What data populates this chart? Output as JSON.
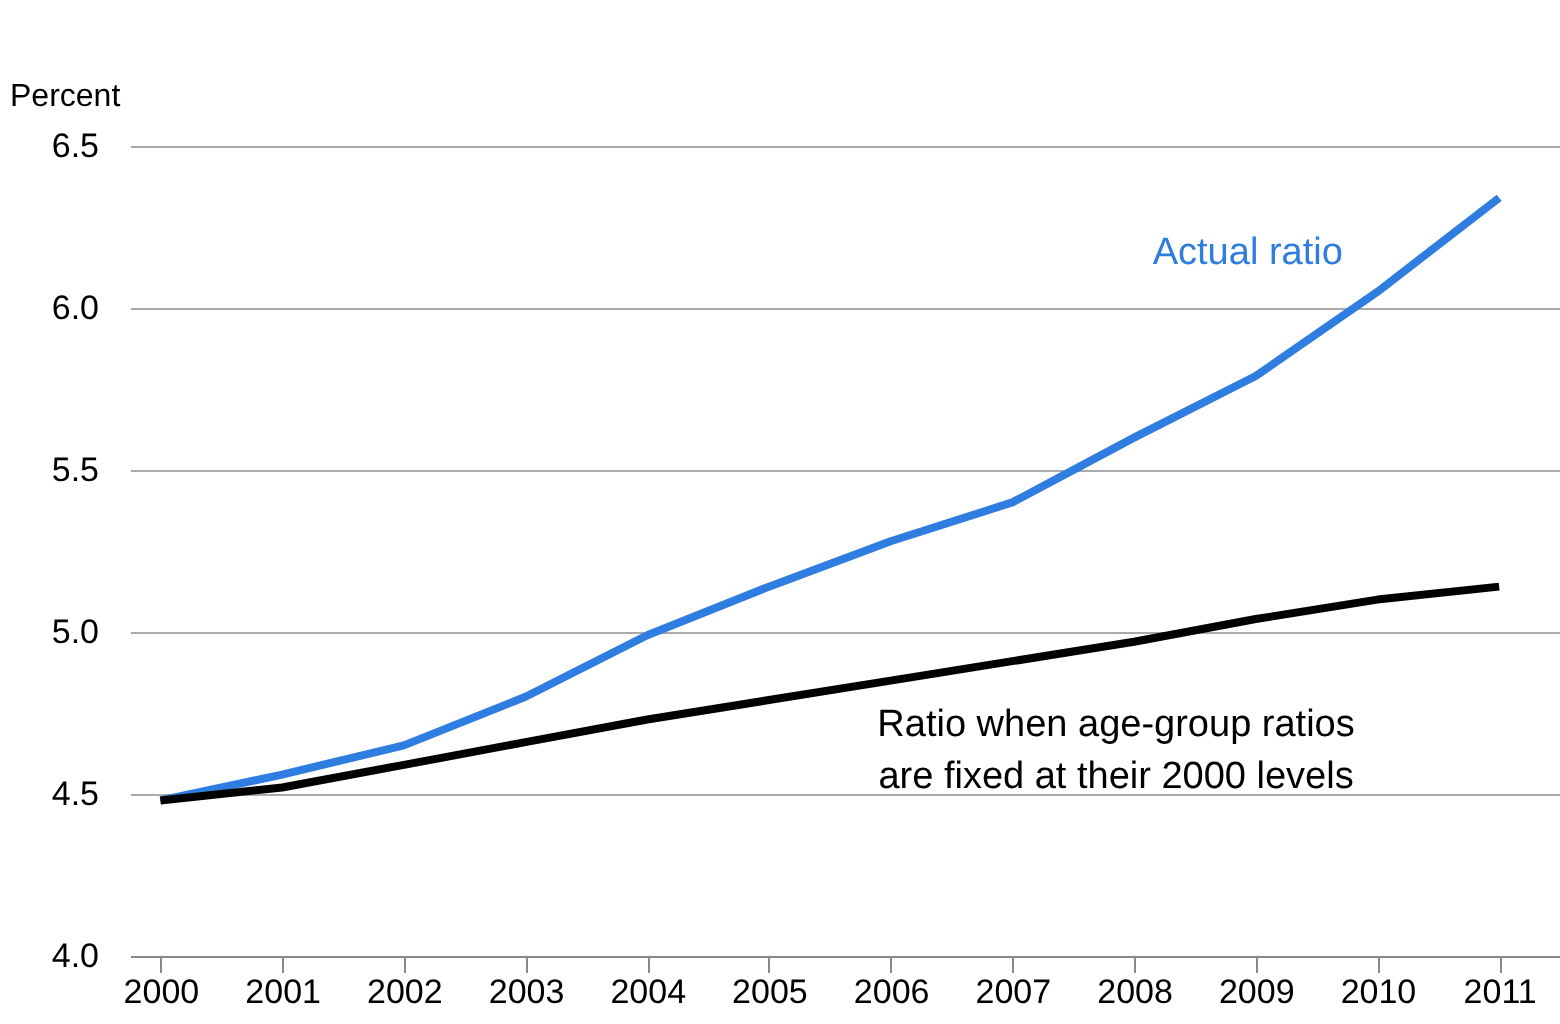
{
  "chart_data": {
    "type": "line",
    "ylabel": "Percent",
    "x": [
      2000,
      2001,
      2002,
      2003,
      2004,
      2005,
      2006,
      2007,
      2008,
      2009,
      2010,
      2011
    ],
    "series": [
      {
        "name": "Actual ratio",
        "color": "#2f7de1",
        "values": [
          4.48,
          4.56,
          4.65,
          4.8,
          4.99,
          5.14,
          5.28,
          5.4,
          5.6,
          5.79,
          6.05,
          6.34
        ]
      },
      {
        "name": "Ratio when age-group ratios\nare fixed at their 2000 levels",
        "color": "#000000",
        "values": [
          4.48,
          4.52,
          4.59,
          4.66,
          4.73,
          4.79,
          4.85,
          4.91,
          4.97,
          5.04,
          5.1,
          5.14
        ]
      }
    ],
    "xlim": [
      1999.75,
      2011.5
    ],
    "xticks": [
      2000,
      2001,
      2002,
      2003,
      2004,
      2005,
      2006,
      2007,
      2008,
      2009,
      2010,
      2011
    ],
    "ylim": [
      4.0,
      6.5
    ],
    "yticks": [
      {
        "value": 4.0,
        "label": "4.0"
      },
      {
        "value": 4.5,
        "label": "4.5"
      },
      {
        "value": 5.0,
        "label": "5.0"
      },
      {
        "value": 5.5,
        "label": "5.5"
      },
      {
        "value": 6.0,
        "label": "6.0"
      },
      {
        "value": 6.5,
        "label": "6.5"
      }
    ],
    "grid": "y",
    "line_style": "solid",
    "marker": "none"
  }
}
